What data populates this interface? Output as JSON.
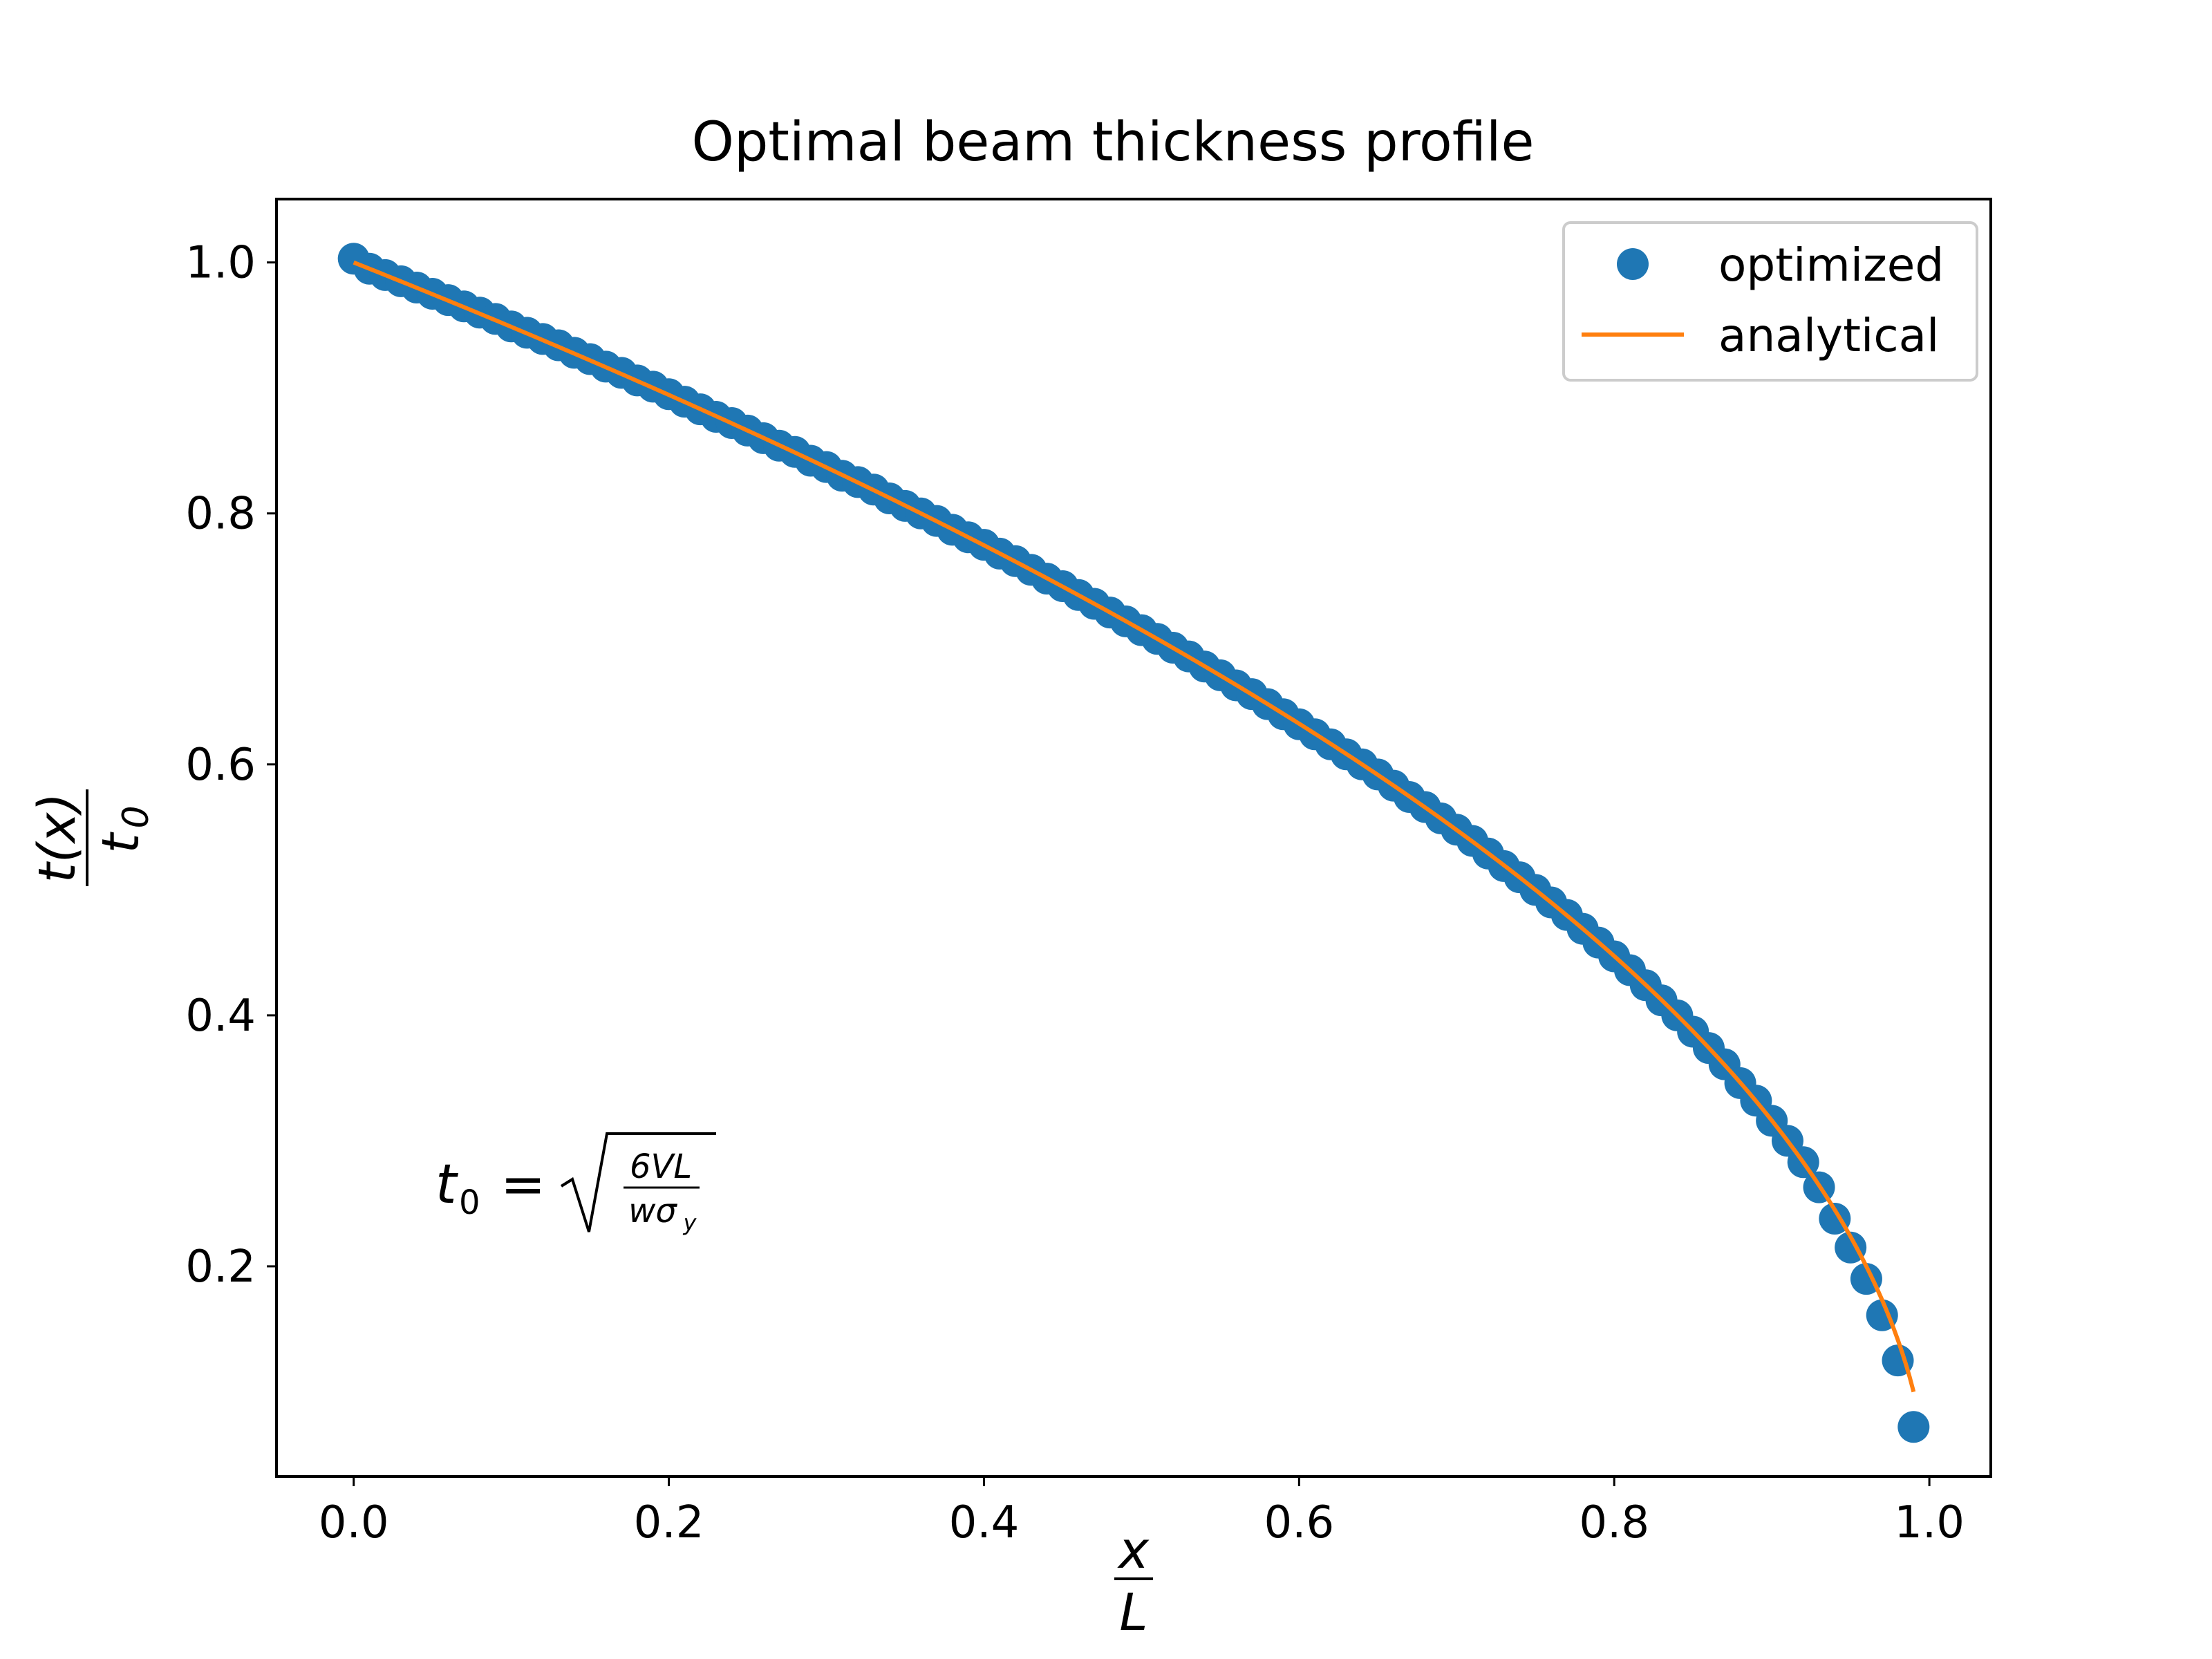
{
  "chart_data": {
    "type": "line",
    "title": "Optimal beam thickness profile",
    "xlabel": {
      "numerator": "x",
      "denominator": "L"
    },
    "ylabel": {
      "numerator": "t(x)",
      "denominator": "t",
      "denominator_subscript": "0"
    },
    "xlim": [
      -0.049,
      1.039
    ],
    "ylim": [
      0.0325,
      1.0505
    ],
    "xticks": [
      0.0,
      0.2,
      0.4,
      0.6,
      0.8,
      1.0
    ],
    "xtick_labels": [
      "0.0",
      "0.2",
      "0.4",
      "0.6",
      "0.8",
      "1.0"
    ],
    "yticks": [
      0.2,
      0.4,
      0.6,
      0.8,
      1.0
    ],
    "ytick_labels": [
      "0.2",
      "0.4",
      "0.6",
      "0.8",
      "1.0"
    ],
    "grid": false,
    "legend_position": "top-right",
    "series": [
      {
        "name": "optimized",
        "style": "markers",
        "color": "#1f77b4",
        "x": [
          0.0,
          0.01,
          0.02,
          0.03,
          0.04,
          0.05,
          0.06,
          0.07,
          0.08,
          0.09,
          0.1,
          0.11,
          0.12,
          0.13,
          0.14,
          0.15,
          0.16,
          0.17,
          0.18,
          0.19,
          0.2,
          0.21,
          0.22,
          0.23,
          0.24,
          0.25,
          0.26,
          0.27,
          0.28,
          0.29,
          0.3,
          0.31,
          0.32,
          0.33,
          0.34,
          0.35,
          0.36,
          0.37,
          0.38,
          0.39,
          0.4,
          0.41,
          0.42,
          0.43,
          0.44,
          0.45,
          0.46,
          0.47,
          0.48,
          0.49,
          0.5,
          0.51,
          0.52,
          0.53,
          0.54,
          0.55,
          0.56,
          0.57,
          0.58,
          0.59,
          0.6,
          0.61,
          0.62,
          0.63,
          0.64,
          0.65,
          0.66,
          0.67,
          0.68,
          0.69,
          0.7,
          0.71,
          0.72,
          0.73,
          0.74,
          0.75,
          0.76,
          0.77,
          0.78,
          0.79,
          0.8,
          0.81,
          0.82,
          0.83,
          0.84,
          0.85,
          0.86,
          0.87,
          0.88,
          0.89,
          0.9,
          0.91,
          0.92,
          0.93,
          0.94,
          0.95,
          0.96,
          0.97,
          0.98,
          0.99
        ],
        "y": [
          1.003,
          0.995,
          0.99,
          0.985,
          0.98,
          0.975,
          0.97,
          0.965,
          0.96,
          0.955,
          0.949,
          0.944,
          0.939,
          0.934,
          0.928,
          0.923,
          0.917,
          0.912,
          0.906,
          0.901,
          0.895,
          0.889,
          0.883,
          0.877,
          0.872,
          0.866,
          0.86,
          0.854,
          0.849,
          0.842,
          0.837,
          0.83,
          0.825,
          0.819,
          0.812,
          0.806,
          0.8,
          0.794,
          0.787,
          0.781,
          0.775,
          0.768,
          0.762,
          0.755,
          0.748,
          0.742,
          0.735,
          0.728,
          0.721,
          0.714,
          0.707,
          0.7,
          0.693,
          0.686,
          0.678,
          0.671,
          0.663,
          0.656,
          0.648,
          0.64,
          0.632,
          0.624,
          0.616,
          0.608,
          0.6,
          0.592,
          0.583,
          0.574,
          0.566,
          0.557,
          0.548,
          0.539,
          0.529,
          0.519,
          0.51,
          0.5,
          0.49,
          0.48,
          0.469,
          0.458,
          0.447,
          0.436,
          0.424,
          0.412,
          0.4,
          0.387,
          0.374,
          0.361,
          0.346,
          0.332,
          0.316,
          0.3,
          0.283,
          0.263,
          0.238,
          0.215,
          0.19,
          0.161,
          0.125,
          0.072
        ]
      },
      {
        "name": "analytical",
        "style": "line",
        "color": "#ff7f0e",
        "function": "sqrt(1 - x)",
        "x_range": [
          0.0,
          0.99
        ]
      }
    ],
    "annotation": {
      "lhs": "t",
      "lhs_subscript": "0",
      "equals": "=",
      "numerator": "6VL",
      "denominator": "wσ",
      "denominator_subscript": "y"
    }
  }
}
